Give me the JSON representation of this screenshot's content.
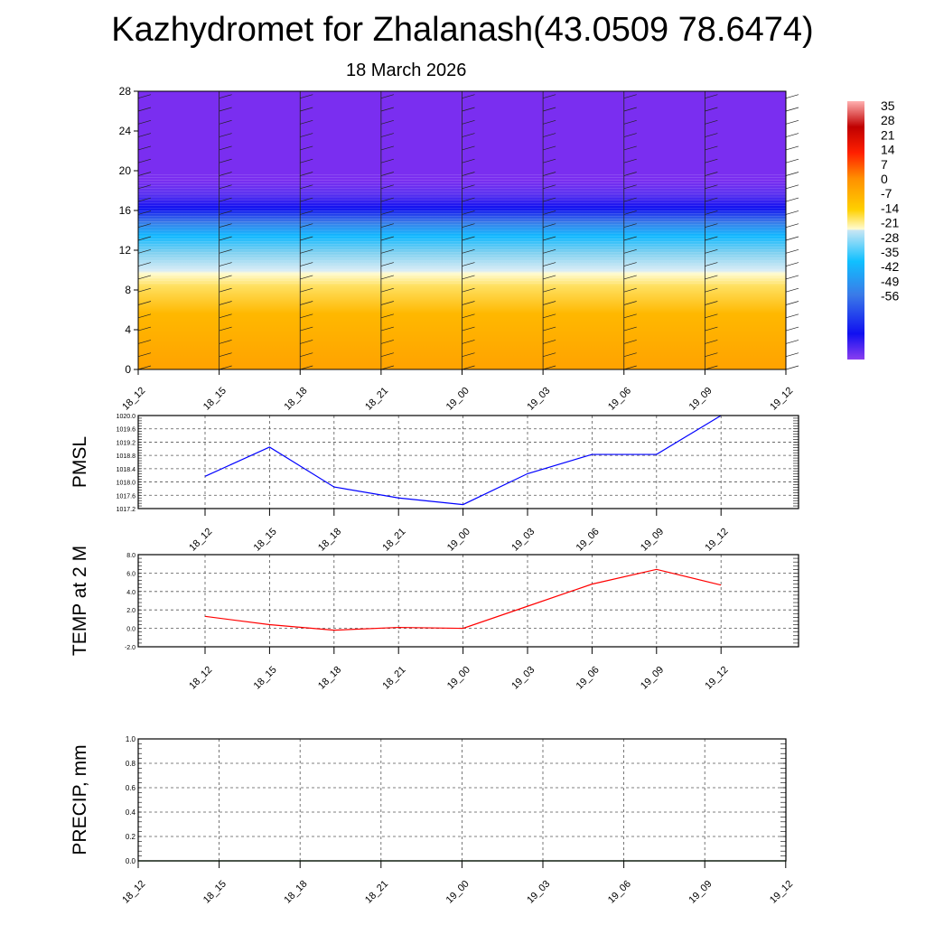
{
  "title": "Kazhydromet for Zhalanash(43.0509 78.6474)",
  "subtitle": "18 March 2026",
  "chart_data": [
    {
      "type": "heatmap",
      "name": "cross-section",
      "ylim": [
        0,
        28
      ],
      "yticks": [
        0,
        4,
        8,
        12,
        16,
        20,
        24,
        28
      ],
      "xticks": [
        "18_12",
        "18_15",
        "18_18",
        "18_21",
        "19_00",
        "19_03",
        "19_06",
        "19_09",
        "19_12"
      ],
      "colorbar": {
        "labels": [
          "35",
          "28",
          "21",
          "14",
          "7",
          "0",
          "-7",
          "-14",
          "-21",
          "-28",
          "-35",
          "-42",
          "-49",
          "-56"
        ]
      }
    },
    {
      "type": "line",
      "ylabel": "PMSL",
      "ylim": [
        1017.2,
        1020.0
      ],
      "yticks": [
        "1017.2",
        "1017.6",
        "1018.0",
        "1018.4",
        "1018.8",
        "1019.2",
        "1019.6",
        "1020.0"
      ],
      "categories": [
        "18_12",
        "18_15",
        "18_18",
        "18_21",
        "19_00",
        "19_03",
        "19_06",
        "19_09",
        "19_12"
      ],
      "values": [
        1018.17,
        1019.05,
        1017.85,
        1017.52,
        1017.32,
        1018.25,
        1018.83,
        1018.83,
        1020.0
      ],
      "color": "#0000ff"
    },
    {
      "type": "line",
      "ylabel": "TEMP at 2 M",
      "ylim": [
        -2,
        8
      ],
      "yticks": [
        "-2.0",
        "0.0",
        "2.0",
        "4.0",
        "6.0",
        "8.0"
      ],
      "categories": [
        "18_12",
        "18_15",
        "18_18",
        "18_21",
        "19_00",
        "19_03",
        "19_06",
        "19_09",
        "19_12"
      ],
      "values": [
        1.3,
        0.4,
        -0.2,
        0.1,
        0.0,
        2.4,
        4.8,
        6.4,
        4.7
      ],
      "color": "#ff0000"
    },
    {
      "type": "line",
      "ylabel": "PRECIP, mm",
      "ylim": [
        0,
        1
      ],
      "yticks": [
        "0.0",
        "0.2",
        "0.4",
        "0.6",
        "0.8",
        "1.0"
      ],
      "categories": [
        "18_12",
        "18_15",
        "18_18",
        "18_21",
        "19_00",
        "19_03",
        "19_06",
        "19_09",
        "19_12"
      ],
      "values": [
        0,
        0,
        0,
        0,
        0,
        0,
        0,
        0,
        0
      ],
      "color": "#006400"
    }
  ]
}
